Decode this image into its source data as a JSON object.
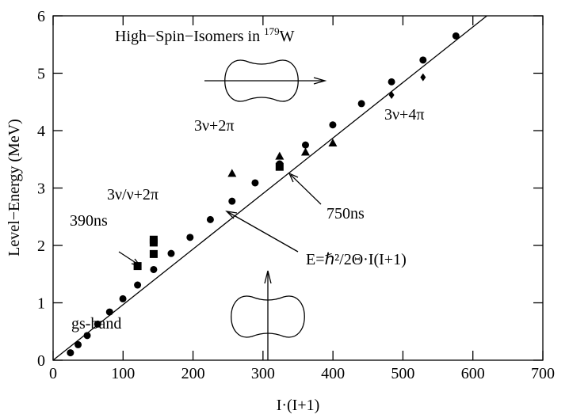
{
  "chart_data": {
    "type": "scatter",
    "title_parts": [
      "High−Spin−Isomers in ",
      "179",
      "W"
    ],
    "xlabel": "I·(I+1)",
    "ylabel": "Level−Energy (MeV)",
    "xlim": [
      0,
      700
    ],
    "ylim": [
      0,
      6
    ],
    "xticks": [
      0,
      100,
      200,
      300,
      400,
      500,
      600,
      700
    ],
    "yticks": [
      0,
      1,
      2,
      3,
      4,
      5,
      6
    ],
    "color": "#000000",
    "series": [
      {
        "marker": "circle",
        "x": [
          24.75,
          35.75,
          48.75,
          63.75,
          80.75,
          99.75,
          120.75,
          143.75,
          168.75,
          195.75,
          224.75,
          255.75,
          288.75,
          323.75,
          360.75,
          399.75,
          440.75,
          483.75,
          528.75,
          575.75
        ],
        "values": [
          0.13,
          0.27,
          0.43,
          0.63,
          0.84,
          1.07,
          1.31,
          1.58,
          1.86,
          2.14,
          2.45,
          2.77,
          3.09,
          3.42,
          3.75,
          4.1,
          4.47,
          4.85,
          5.23,
          5.65
        ]
      },
      {
        "marker": "square",
        "x": [
          120.75,
          143.75,
          143.75,
          143.75,
          323.75
        ],
        "values": [
          1.64,
          2.05,
          2.1,
          1.85,
          3.37
        ]
      },
      {
        "marker": "triangle",
        "x": [
          255.75,
          323.75,
          360.75,
          399.75
        ],
        "values": [
          3.25,
          3.55,
          3.62,
          3.78
        ]
      },
      {
        "marker": "diamond",
        "x": [
          483.75,
          528.75
        ],
        "values": [
          4.62,
          4.93
        ]
      }
    ],
    "fit_line": {
      "x": [
        0,
        620
      ],
      "values": [
        0,
        6
      ]
    },
    "annotations": [
      "3ν+2π",
      "3ν+4π",
      "3ν/ν+2π",
      "390ns",
      "750ns",
      "E=ℏ²/2Θ·I(I+1)",
      "gs-band"
    ]
  }
}
